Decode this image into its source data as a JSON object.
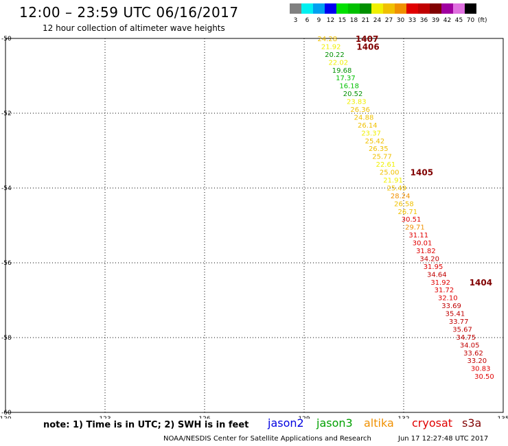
{
  "header": {
    "title": "12:00 – 23:59 UTC 06/16/2017",
    "subtitle": "12 hour collection of altimeter wave heights"
  },
  "colorbar": {
    "unit": "(ft)",
    "entries": [
      {
        "label": "3",
        "color": "#808080"
      },
      {
        "label": "6",
        "color": "#00f0f0"
      },
      {
        "label": "9",
        "color": "#00a0f0"
      },
      {
        "label": "12",
        "color": "#0000f0"
      },
      {
        "label": "15",
        "color": "#00e000"
      },
      {
        "label": "18",
        "color": "#00c000"
      },
      {
        "label": "21",
        "color": "#009000"
      },
      {
        "label": "24",
        "color": "#f0f000"
      },
      {
        "label": "27",
        "color": "#f0c000"
      },
      {
        "label": "30",
        "color": "#f09000"
      },
      {
        "label": "33",
        "color": "#e00000"
      },
      {
        "label": "36",
        "color": "#c00000"
      },
      {
        "label": "39",
        "color": "#800000"
      },
      {
        "label": "42",
        "color": "#a000a0"
      },
      {
        "label": "45",
        "color": "#e070e0"
      },
      {
        "label": "70",
        "color": "#000000"
      }
    ]
  },
  "chart_data": {
    "type": "scatter",
    "xlim": [
      120,
      135
    ],
    "ylim": [
      -60,
      -50
    ],
    "xticks": [
      "120",
      "123",
      "126",
      "129",
      "132",
      "135"
    ],
    "yticks": [
      "-50",
      "-52",
      "-54",
      "-56",
      "-58",
      "-60"
    ],
    "grid": true,
    "point_color_scale": [
      {
        "min": 0,
        "color": "#808080"
      },
      {
        "min": 3,
        "color": "#00f0f0"
      },
      {
        "min": 6,
        "color": "#00a0f0"
      },
      {
        "min": 9,
        "color": "#0000f0"
      },
      {
        "min": 12,
        "color": "#00e000"
      },
      {
        "min": 15,
        "color": "#00c000"
      },
      {
        "min": 18,
        "color": "#009000"
      },
      {
        "min": 21,
        "color": "#f0f000"
      },
      {
        "min": 24,
        "color": "#f0c000"
      },
      {
        "min": 27,
        "color": "#f09000"
      },
      {
        "min": 30,
        "color": "#e00000"
      },
      {
        "min": 33,
        "color": "#c00000"
      },
      {
        "min": 36,
        "color": "#800000"
      },
      {
        "min": 39,
        "color": "#a000a0"
      },
      {
        "min": 42,
        "color": "#e070e0"
      },
      {
        "min": 45,
        "color": "#000000"
      }
    ],
    "points": [
      {
        "lon": 129.7,
        "lat": -50.0,
        "v": "24.28"
      },
      {
        "lon": 129.81,
        "lat": -50.21,
        "v": "21.92"
      },
      {
        "lon": 129.92,
        "lat": -50.42,
        "v": "20.22"
      },
      {
        "lon": 130.03,
        "lat": -50.63,
        "v": "22.02"
      },
      {
        "lon": 130.14,
        "lat": -50.84,
        "v": "19.68"
      },
      {
        "lon": 130.25,
        "lat": -51.05,
        "v": "17.37"
      },
      {
        "lon": 130.36,
        "lat": -51.26,
        "v": "16.18"
      },
      {
        "lon": 130.47,
        "lat": -51.47,
        "v": "20.52"
      },
      {
        "lon": 130.58,
        "lat": -51.68,
        "v": "23.83"
      },
      {
        "lon": 130.69,
        "lat": -51.89,
        "v": "26.36"
      },
      {
        "lon": 130.8,
        "lat": -52.1,
        "v": "24.88"
      },
      {
        "lon": 130.91,
        "lat": -52.31,
        "v": "26.14"
      },
      {
        "lon": 131.02,
        "lat": -52.52,
        "v": "23.37"
      },
      {
        "lon": 131.13,
        "lat": -52.73,
        "v": "25.42"
      },
      {
        "lon": 131.24,
        "lat": -52.94,
        "v": "26.35"
      },
      {
        "lon": 131.35,
        "lat": -53.15,
        "v": "25.77"
      },
      {
        "lon": 131.46,
        "lat": -53.36,
        "v": "22.61"
      },
      {
        "lon": 131.57,
        "lat": -53.57,
        "v": "25.00"
      },
      {
        "lon": 131.68,
        "lat": -53.78,
        "v": "21.91"
      },
      {
        "lon": 131.79,
        "lat": -53.99,
        "v": "25.49"
      },
      {
        "lon": 131.9,
        "lat": -54.2,
        "v": "28.24"
      },
      {
        "lon": 132.01,
        "lat": -54.41,
        "v": "26.58"
      },
      {
        "lon": 132.12,
        "lat": -54.62,
        "v": "26.71"
      },
      {
        "lon": 132.23,
        "lat": -54.83,
        "v": "30.51"
      },
      {
        "lon": 132.34,
        "lat": -55.04,
        "v": "29.71"
      },
      {
        "lon": 132.45,
        "lat": -55.25,
        "v": "31.11"
      },
      {
        "lon": 132.56,
        "lat": -55.46,
        "v": "30.01"
      },
      {
        "lon": 132.67,
        "lat": -55.67,
        "v": "31.82"
      },
      {
        "lon": 132.78,
        "lat": -55.88,
        "v": "34.20"
      },
      {
        "lon": 132.89,
        "lat": -56.09,
        "v": "31.95"
      },
      {
        "lon": 133.0,
        "lat": -56.3,
        "v": "34.64"
      },
      {
        "lon": 133.11,
        "lat": -56.51,
        "v": "31.92"
      },
      {
        "lon": 133.22,
        "lat": -56.72,
        "v": "31.72"
      },
      {
        "lon": 133.33,
        "lat": -56.93,
        "v": "32.10"
      },
      {
        "lon": 133.44,
        "lat": -57.14,
        "v": "33.69"
      },
      {
        "lon": 133.55,
        "lat": -57.35,
        "v": "35.41"
      },
      {
        "lon": 133.66,
        "lat": -57.56,
        "v": "33.77"
      },
      {
        "lon": 133.77,
        "lat": -57.77,
        "v": "35.67"
      },
      {
        "lon": 133.88,
        "lat": -57.98,
        "v": "34.75"
      },
      {
        "lon": 133.99,
        "lat": -58.19,
        "v": "34.05"
      },
      {
        "lon": 134.1,
        "lat": -58.4,
        "v": "33.62"
      },
      {
        "lon": 134.21,
        "lat": -58.61,
        "v": "33.20"
      },
      {
        "lon": 134.32,
        "lat": -58.82,
        "v": "30.83"
      },
      {
        "lon": 134.43,
        "lat": -59.03,
        "v": "30.50"
      }
    ],
    "pass_labels": [
      {
        "text": "1407",
        "lon": 130.55,
        "lat": -50.0
      },
      {
        "text": "1406",
        "lon": 130.58,
        "lat": -50.21
      },
      {
        "text": "1405",
        "lon": 132.2,
        "lat": -53.57
      },
      {
        "text": "1404",
        "lon": 133.98,
        "lat": -56.51
      }
    ],
    "pass_label_color": "#800000"
  },
  "footer": {
    "note": "note: 1) Time is in UTC; 2) SWH is in feet",
    "satellites": [
      {
        "label": "jason2",
        "color": "#0000e0"
      },
      {
        "label": "jason3",
        "color": "#00a000"
      },
      {
        "label": "altika",
        "color": "#f09000"
      },
      {
        "label": "cryosat",
        "color": "#e00000"
      },
      {
        "label": "s3a",
        "color": "#800000"
      }
    ],
    "credit": "NOAA/NESDIS Center for Satellite Applications and Research",
    "timestamp": "Jun 17 12:27:48 UTC 2017"
  }
}
